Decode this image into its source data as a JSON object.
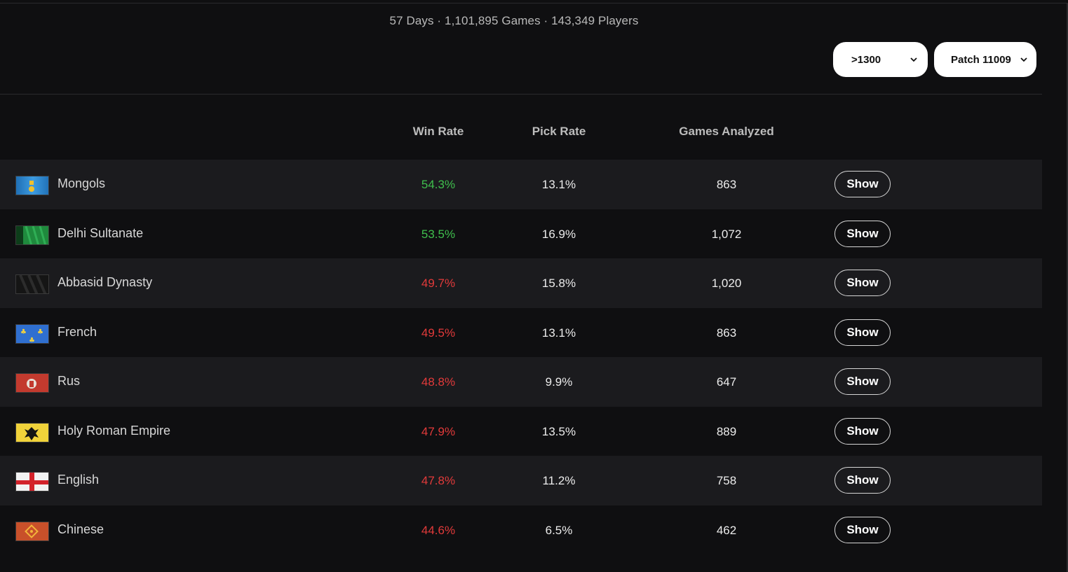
{
  "summary": "57 Days · 1,101,895 Games · 143,349 Players",
  "filters": {
    "elo": ">1300",
    "patch": "Patch 11009"
  },
  "columns": {
    "win_rate": "Win Rate",
    "pick_rate": "Pick Rate",
    "games_analyzed": "Games Analyzed"
  },
  "colors": {
    "positive": "#3fbf4d",
    "negative": "#e23a3a"
  },
  "rows": [
    {
      "civ": "Mongols",
      "flag": "mongols-flag-icon",
      "win_rate": "54.3%",
      "trend": "up",
      "pick_rate": "13.1%",
      "games": "863",
      "action": "Show"
    },
    {
      "civ": "Delhi Sultanate",
      "flag": "delhi-sultanate-flag-icon",
      "win_rate": "53.5%",
      "trend": "up",
      "pick_rate": "16.9%",
      "games": "1,072",
      "action": "Show"
    },
    {
      "civ": "Abbasid Dynasty",
      "flag": "abbasid-dynasty-flag-icon",
      "win_rate": "49.7%",
      "trend": "down",
      "pick_rate": "15.8%",
      "games": "1,020",
      "action": "Show"
    },
    {
      "civ": "French",
      "flag": "french-flag-icon",
      "win_rate": "49.5%",
      "trend": "down",
      "pick_rate": "13.1%",
      "games": "863",
      "action": "Show"
    },
    {
      "civ": "Rus",
      "flag": "rus-flag-icon",
      "win_rate": "48.8%",
      "trend": "down",
      "pick_rate": "9.9%",
      "games": "647",
      "action": "Show"
    },
    {
      "civ": "Holy Roman Empire",
      "flag": "holy-roman-empire-flag-icon",
      "win_rate": "47.9%",
      "trend": "down",
      "pick_rate": "13.5%",
      "games": "889",
      "action": "Show"
    },
    {
      "civ": "English",
      "flag": "english-flag-icon",
      "win_rate": "47.8%",
      "trend": "down",
      "pick_rate": "11.2%",
      "games": "758",
      "action": "Show"
    },
    {
      "civ": "Chinese",
      "flag": "chinese-flag-icon",
      "win_rate": "44.6%",
      "trend": "down",
      "pick_rate": "6.5%",
      "games": "462",
      "action": "Show"
    }
  ]
}
